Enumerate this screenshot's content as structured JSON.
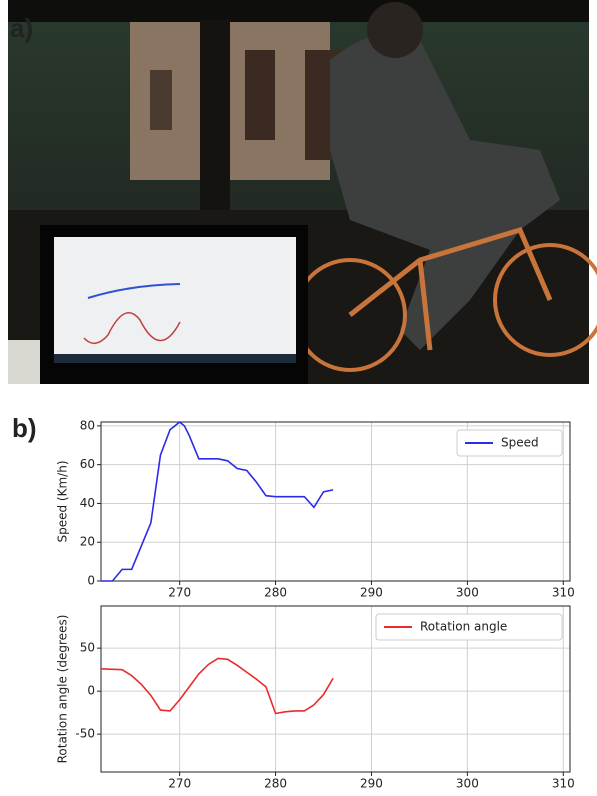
{
  "panel_labels": [
    "a)",
    "b)"
  ],
  "chart_data": [
    {
      "type": "line",
      "ylabel": "Speed (Km/h)",
      "x": [
        261.8,
        263,
        264,
        265,
        266,
        267,
        268,
        269,
        269.5,
        270,
        270.5,
        271,
        272,
        273,
        274,
        275,
        276,
        277,
        278,
        279,
        280,
        281,
        282,
        283,
        284,
        285,
        286
      ],
      "series": [
        {
          "name": "Speed",
          "color": "#2b2bea",
          "values": [
            0,
            0,
            6,
            6,
            18,
            30,
            65,
            78,
            80,
            82,
            80,
            75,
            63,
            63,
            63,
            62,
            58,
            57,
            51,
            44,
            43.5,
            43.5,
            43.5,
            43.5,
            38,
            46,
            47
          ]
        }
      ],
      "xlim": [
        261.8,
        310.7
      ],
      "xticks": [
        270,
        280,
        290,
        300,
        310
      ],
      "ylim": [
        0,
        82
      ],
      "yticks": [
        0,
        20,
        40,
        60,
        80
      ],
      "grid": true,
      "legend": "upper-right"
    },
    {
      "type": "line",
      "ylabel": "Rotation angle (degrees)",
      "x": [
        261.8,
        264,
        265,
        266,
        267,
        268,
        269,
        270,
        271,
        272,
        273,
        274,
        275,
        276,
        277,
        278,
        279,
        280,
        281,
        282,
        283,
        284,
        285,
        286
      ],
      "series": [
        {
          "name": "Rotation angle",
          "color": "#ea2b2b",
          "values": [
            26,
            25,
            18,
            8,
            -5,
            -22,
            -23,
            -10,
            5,
            20,
            31,
            38,
            37,
            30,
            22,
            14,
            5,
            -26,
            -24,
            -23,
            -23,
            -16,
            -4,
            15
          ]
        }
      ],
      "xlim": [
        261.8,
        310.7
      ],
      "xticks": [
        270,
        280,
        290,
        300,
        310
      ],
      "ylim": [
        -94,
        99
      ],
      "yticks": [
        -50,
        0,
        50
      ],
      "grid": true,
      "legend": "upper-right"
    }
  ]
}
